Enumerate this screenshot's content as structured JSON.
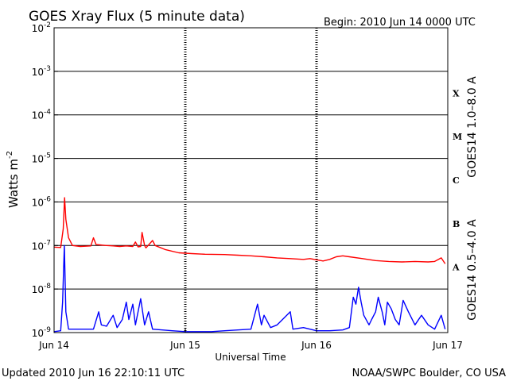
{
  "header": {
    "title": "GOES Xray Flux (5 minute data)",
    "begin": "Begin:  2010 Jun 14 0000 UTC"
  },
  "footer": {
    "updated": "Updated 2010 Jun 16 22:10:11 UTC",
    "credit": "NOAA/SWPC Boulder, CO USA"
  },
  "chart_data": {
    "type": "line",
    "title": "GOES Xray Flux (5 minute data)",
    "xlabel": "Universal Time",
    "ylabel_base": "Watts m",
    "ylabel_exp": "-2",
    "yscale": "log",
    "ylim_exp": [
      -9,
      -2
    ],
    "xlim_days": [
      0,
      3
    ],
    "x_ticks": [
      {
        "day": 0,
        "label": "Jun 14"
      },
      {
        "day": 1,
        "label": "Jun 15"
      },
      {
        "day": 2,
        "label": "Jun 16"
      },
      {
        "day": 3,
        "label": "Jun 17"
      }
    ],
    "y_ticks": [
      {
        "exp": -2,
        "base": "10",
        "sup": "-2"
      },
      {
        "exp": -3,
        "base": "10",
        "sup": "-3"
      },
      {
        "exp": -4,
        "base": "10",
        "sup": "-4"
      },
      {
        "exp": -5,
        "base": "10",
        "sup": "-5"
      },
      {
        "exp": -6,
        "base": "10",
        "sup": "-6"
      },
      {
        "exp": -7,
        "base": "10",
        "sup": "-7"
      },
      {
        "exp": -8,
        "base": "10",
        "sup": "-8"
      },
      {
        "exp": -9,
        "base": "10",
        "sup": "-9"
      }
    ],
    "flare_classes": [
      {
        "label": "X",
        "exp": -3.5
      },
      {
        "label": "M",
        "exp": -4.5
      },
      {
        "label": "C",
        "exp": -5.5
      },
      {
        "label": "B",
        "exp": -6.5
      },
      {
        "label": "A",
        "exp": -7.5
      }
    ],
    "series": [
      {
        "name": "GOES14 1.0–8.0 A",
        "color": "#ff0000",
        "points": [
          [
            0.0,
            9.2e-08
          ],
          [
            0.05,
            9e-08
          ],
          [
            0.07,
            2.4e-07
          ],
          [
            0.08,
            1.25e-06
          ],
          [
            0.09,
            4e-07
          ],
          [
            0.11,
            1.5e-07
          ],
          [
            0.14,
            1e-07
          ],
          [
            0.2,
            9.5e-08
          ],
          [
            0.28,
            9.8e-08
          ],
          [
            0.3,
            1.5e-07
          ],
          [
            0.32,
            1.05e-07
          ],
          [
            0.4,
            1e-07
          ],
          [
            0.45,
            9.8e-08
          ],
          [
            0.5,
            9.5e-08
          ],
          [
            0.55,
            9.8e-08
          ],
          [
            0.6,
            9.5e-08
          ],
          [
            0.62,
            1.2e-07
          ],
          [
            0.64,
            9.3e-08
          ],
          [
            0.66,
            9.5e-08
          ],
          [
            0.67,
            2e-07
          ],
          [
            0.69,
            1e-07
          ],
          [
            0.7,
            8.8e-08
          ],
          [
            0.75,
            1.3e-07
          ],
          [
            0.77,
            1e-07
          ],
          [
            0.85,
            8e-08
          ],
          [
            0.95,
            6.8e-08
          ],
          [
            1.05,
            6.5e-08
          ],
          [
            1.15,
            6.3e-08
          ],
          [
            1.3,
            6.2e-08
          ],
          [
            1.4,
            6e-08
          ],
          [
            1.5,
            5.8e-08
          ],
          [
            1.6,
            5.5e-08
          ],
          [
            1.7,
            5.2e-08
          ],
          [
            1.8,
            5e-08
          ],
          [
            1.9,
            4.8e-08
          ],
          [
            1.95,
            5e-08
          ],
          [
            2.05,
            4.4e-08
          ],
          [
            2.1,
            4.8e-08
          ],
          [
            2.15,
            5.5e-08
          ],
          [
            2.2,
            5.8e-08
          ],
          [
            2.25,
            5.5e-08
          ],
          [
            2.35,
            5e-08
          ],
          [
            2.45,
            4.5e-08
          ],
          [
            2.55,
            4.3e-08
          ],
          [
            2.65,
            4.2e-08
          ],
          [
            2.75,
            4.3e-08
          ],
          [
            2.85,
            4.2e-08
          ],
          [
            2.9,
            4.3e-08
          ],
          [
            2.95,
            5.2e-08
          ],
          [
            2.98,
            3.8e-08
          ]
        ]
      },
      {
        "name": "GOES14 0.5–4.0 A",
        "color": "#0000ff",
        "points": [
          [
            0.0,
            1.05e-09
          ],
          [
            0.05,
            1.1e-09
          ],
          [
            0.065,
            5e-09
          ],
          [
            0.078,
            1e-07
          ],
          [
            0.09,
            3e-09
          ],
          [
            0.11,
            1.2e-09
          ],
          [
            0.3,
            1.2e-09
          ],
          [
            0.34,
            3e-09
          ],
          [
            0.36,
            1.5e-09
          ],
          [
            0.4,
            1.4e-09
          ],
          [
            0.45,
            2.5e-09
          ],
          [
            0.48,
            1.3e-09
          ],
          [
            0.52,
            2e-09
          ],
          [
            0.55,
            5e-09
          ],
          [
            0.57,
            2e-09
          ],
          [
            0.6,
            4.5e-09
          ],
          [
            0.62,
            1.5e-09
          ],
          [
            0.66,
            6e-09
          ],
          [
            0.69,
            1.5e-09
          ],
          [
            0.72,
            3e-09
          ],
          [
            0.75,
            1.2e-09
          ],
          [
            0.9,
            1.1e-09
          ],
          [
            1.0,
            1.05e-09
          ],
          [
            1.2,
            1.05e-09
          ],
          [
            1.3,
            1.1e-09
          ],
          [
            1.5,
            1.2e-09
          ],
          [
            1.55,
            4.5e-09
          ],
          [
            1.58,
            1.5e-09
          ],
          [
            1.6,
            2.5e-09
          ],
          [
            1.65,
            1.3e-09
          ],
          [
            1.7,
            1.5e-09
          ],
          [
            1.8,
            3e-09
          ],
          [
            1.82,
            1.2e-09
          ],
          [
            1.9,
            1.3e-09
          ],
          [
            2.0,
            1.1e-09
          ],
          [
            2.1,
            1.1e-09
          ],
          [
            2.2,
            1.15e-09
          ],
          [
            2.25,
            1.3e-09
          ],
          [
            2.28,
            6.5e-09
          ],
          [
            2.3,
            4.5e-09
          ],
          [
            2.32,
            1.1e-08
          ],
          [
            2.34,
            5e-09
          ],
          [
            2.36,
            2.5e-09
          ],
          [
            2.4,
            1.5e-09
          ],
          [
            2.42,
            2e-09
          ],
          [
            2.45,
            3e-09
          ],
          [
            2.47,
            6.5e-09
          ],
          [
            2.5,
            3e-09
          ],
          [
            2.52,
            1.5e-09
          ],
          [
            2.54,
            5e-09
          ],
          [
            2.57,
            3.5e-09
          ],
          [
            2.6,
            2e-09
          ],
          [
            2.63,
            1.5e-09
          ],
          [
            2.66,
            5.5e-09
          ],
          [
            2.7,
            3e-09
          ],
          [
            2.75,
            1.5e-09
          ],
          [
            2.8,
            2.5e-09
          ],
          [
            2.85,
            1.5e-09
          ],
          [
            2.9,
            1.2e-09
          ],
          [
            2.95,
            2.5e-09
          ],
          [
            2.98,
            1.2e-09
          ]
        ]
      }
    ]
  }
}
